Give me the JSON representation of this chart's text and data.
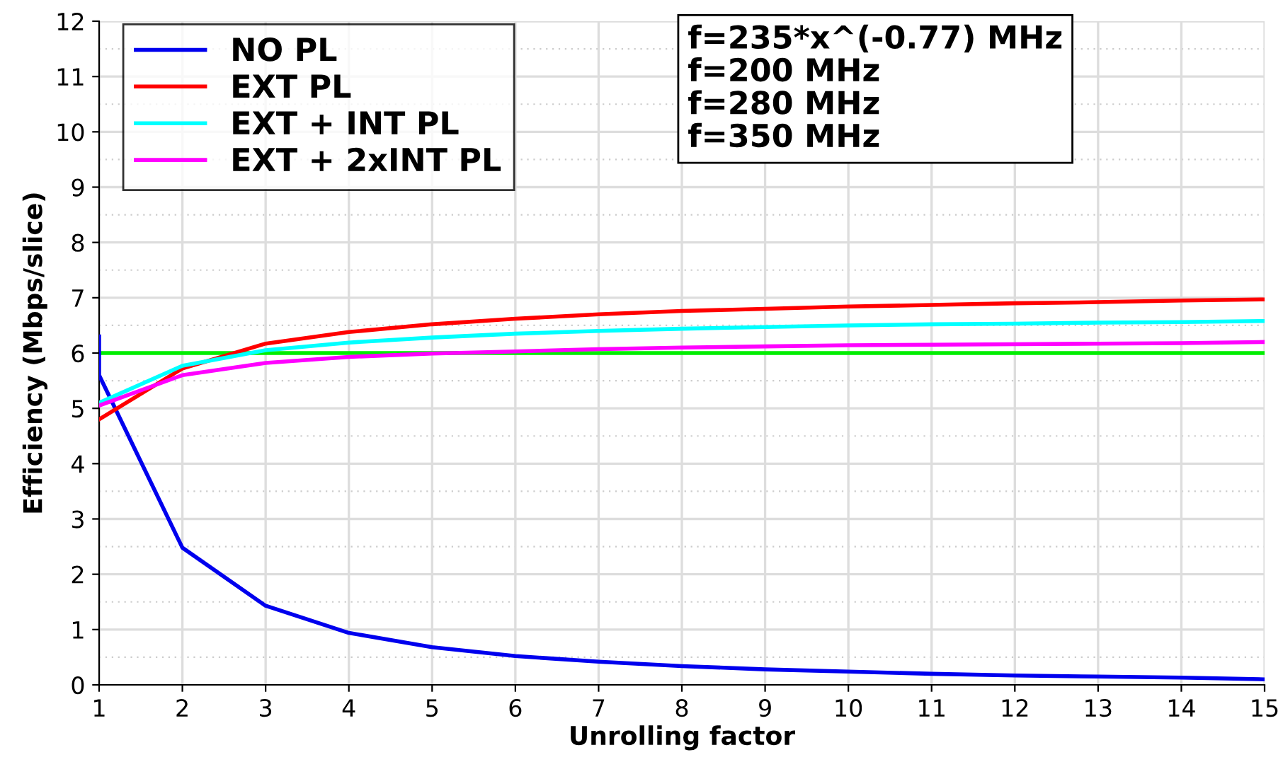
{
  "chart_data": {
    "type": "line",
    "xlabel": "Unrolling factor",
    "ylabel": "Efficiency (Mbps/slice)",
    "x": [
      1,
      2,
      3,
      4,
      5,
      6,
      7,
      8,
      9,
      10,
      11,
      12,
      13,
      14,
      15
    ],
    "series": [
      {
        "name": "NO PL",
        "color": "#0000ee",
        "x": [
          1,
          1,
          2,
          3,
          4,
          5,
          6,
          7,
          8,
          9,
          10,
          11,
          12,
          13,
          14,
          15
        ],
        "values": [
          6.3,
          5.6,
          2.48,
          1.43,
          0.94,
          0.68,
          0.52,
          0.42,
          0.34,
          0.28,
          0.24,
          0.2,
          0.17,
          0.15,
          0.13,
          0.1
        ]
      },
      {
        "name": "EXT PL",
        "color": "#ff0000",
        "values": [
          4.8,
          5.72,
          6.17,
          6.38,
          6.52,
          6.62,
          6.7,
          6.76,
          6.8,
          6.84,
          6.87,
          6.9,
          6.92,
          6.95,
          6.97
        ]
      },
      {
        "name": "EXT + INT PL",
        "color": "#00ffff",
        "values": [
          5.1,
          5.77,
          6.05,
          6.19,
          6.28,
          6.35,
          6.4,
          6.44,
          6.47,
          6.5,
          6.52,
          6.53,
          6.55,
          6.56,
          6.58
        ]
      },
      {
        "name": "EXT + 2xINT PL",
        "color": "#ff00ff",
        "values": [
          5.05,
          5.6,
          5.82,
          5.93,
          5.99,
          6.03,
          6.07,
          6.1,
          6.12,
          6.14,
          6.15,
          6.16,
          6.17,
          6.18,
          6.2
        ]
      }
    ],
    "ref_lines": [
      {
        "axis": "y",
        "value": 6,
        "label": null,
        "color": "#00ee00"
      }
    ],
    "annotations": [
      "f=235*x^(-0.77) MHz\nf=200 MHz\nf=280 MHz\nf=350 MHz"
    ],
    "xlim": [
      1,
      15
    ],
    "xticks": [
      1,
      2,
      3,
      4,
      5,
      6,
      7,
      8,
      9,
      10,
      11,
      12,
      13,
      14,
      15
    ],
    "ylim": [
      0,
      12
    ],
    "yticks": [
      0,
      1,
      2,
      3,
      4,
      5,
      6,
      7,
      8,
      9,
      10,
      11,
      12
    ],
    "grid": true,
    "legend": "top left",
    "marker": "none",
    "line_style": "solid"
  }
}
